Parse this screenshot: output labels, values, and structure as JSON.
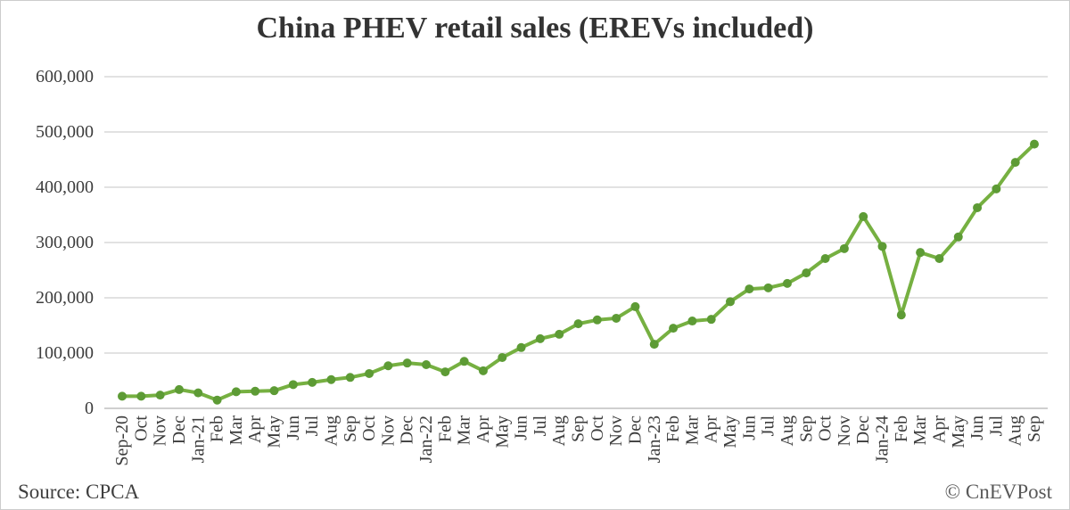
{
  "header": {
    "title": "China PHEV retail sales (EREVs included)"
  },
  "footer": {
    "source": "Source: CPCA",
    "credit": "© CnEVPost"
  },
  "colors": {
    "line": "#76b041",
    "marker": "#5d9b35",
    "gridline": "#d9d9d9",
    "axis_line": "#bfbfbf",
    "tick_text": "#3d3d3d",
    "title_text": "#333333"
  },
  "chart_data": {
    "type": "line",
    "title": "China PHEV retail sales (EREVs included)",
    "xlabel": "",
    "ylabel": "",
    "legend": "none",
    "grid": "horizontal",
    "ylim": [
      0,
      600000
    ],
    "ytick_interval": 100000,
    "categories": [
      "Sep-20",
      "Oct",
      "Nov",
      "Dec",
      "Jan-21",
      "Feb",
      "Mar",
      "Apr",
      "May",
      "Jun",
      "Jul",
      "Aug",
      "Sep",
      "Oct",
      "Nov",
      "Dec",
      "Jan-22",
      "Feb",
      "Mar",
      "Apr",
      "May",
      "Jun",
      "Jul",
      "Aug",
      "Sep",
      "Oct",
      "Nov",
      "Dec",
      "Jan-23",
      "Feb",
      "Mar",
      "Apr",
      "May",
      "Jun",
      "Jul",
      "Aug",
      "Sep",
      "Oct",
      "Nov",
      "Dec",
      "Jan-24",
      "Feb",
      "Mar",
      "Apr",
      "May",
      "Jun",
      "Jul",
      "Aug",
      "Sep"
    ],
    "values": [
      22000,
      22000,
      24000,
      34000,
      28000,
      15000,
      30000,
      31000,
      32000,
      43000,
      47000,
      52000,
      56000,
      63000,
      77000,
      82000,
      79000,
      66000,
      85000,
      68000,
      92000,
      110000,
      126000,
      134000,
      153000,
      160000,
      163000,
      184000,
      116000,
      145000,
      158000,
      161000,
      193000,
      216000,
      218000,
      226000,
      245000,
      271000,
      289000,
      347000,
      293000,
      169000,
      282000,
      271000,
      310000,
      363000,
      397000,
      445000,
      478000
    ]
  }
}
